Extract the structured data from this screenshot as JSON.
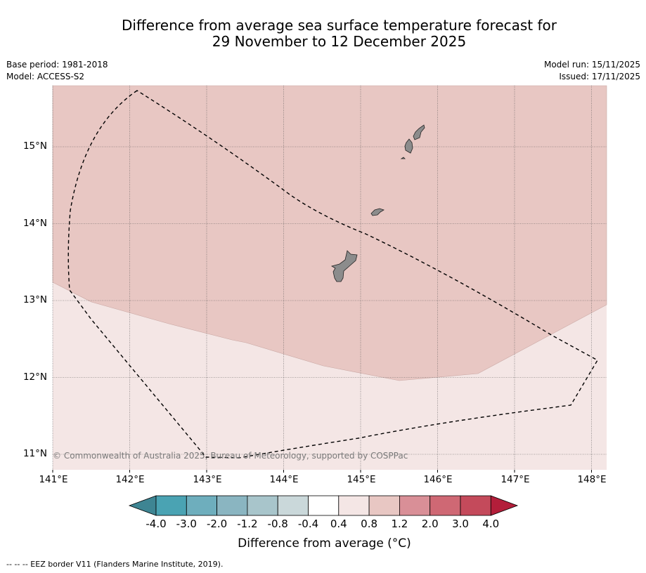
{
  "title": {
    "line1": "Difference from average sea surface temperature forecast for",
    "line2": "29 November to 12 December 2025"
  },
  "meta": {
    "base_period": "Base period: 1981-2018",
    "model": "Model: ACCESS-S2",
    "model_run": "Model run: 15/11/2025",
    "issued": "Issued: 17/11/2025"
  },
  "map": {
    "lat_labels": [
      "15°N",
      "14°N",
      "13°N",
      "12°N",
      "11°N"
    ],
    "lon_labels": [
      "141°E",
      "142°E",
      "143°E",
      "144°E",
      "145°E",
      "146°E",
      "147°E",
      "148°E"
    ],
    "copyright": "© Commonwealth of Australia 2025, Bureau of Meteorology, supported by COSPPac",
    "colors": {
      "band_0p4_0p8": "#f4e6e5",
      "band_0p8_1p2": "#e8c7c3",
      "land": "#8c8c8c",
      "grid": "#555555"
    }
  },
  "colorbar": {
    "ticks": [
      "-4.0",
      "-3.0",
      "-2.0",
      "-1.2",
      "-0.8",
      "-0.4",
      "0.4",
      "0.8",
      "1.2",
      "2.0",
      "3.0",
      "4.0"
    ],
    "colors": [
      "#4aa3b3",
      "#6eaebd",
      "#8ab5c1",
      "#a8c5cb",
      "#cad8da",
      "#ffffff",
      "#f4e6e5",
      "#e8c7c3",
      "#d98f97",
      "#cf6874",
      "#c44a5b"
    ],
    "under_color": "#3e8593",
    "over_color": "#b31e3a",
    "label": "Difference from average (°C)"
  },
  "legend": {
    "eez": "--  --  -- EEZ border V11 (Flanders Marine Institute, 2019)."
  }
}
